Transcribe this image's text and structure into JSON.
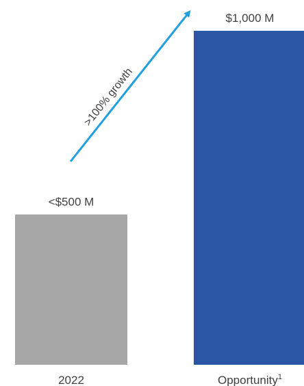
{
  "chart_data": {
    "type": "bar",
    "categories": [
      "2022",
      "Opportunity"
    ],
    "category_superscripts": [
      "",
      "1"
    ],
    "values": [
      450,
      1000
    ],
    "data_labels": [
      "<$500 M",
      "$1,000 M"
    ],
    "colors": [
      "#a6a6a6",
      "#2b56a4"
    ],
    "annotation": {
      "text": ">100% growth",
      "arrow_color": "#1f9fe0"
    },
    "ylim": [
      0,
      1000
    ],
    "grid": false,
    "legend": "none"
  }
}
